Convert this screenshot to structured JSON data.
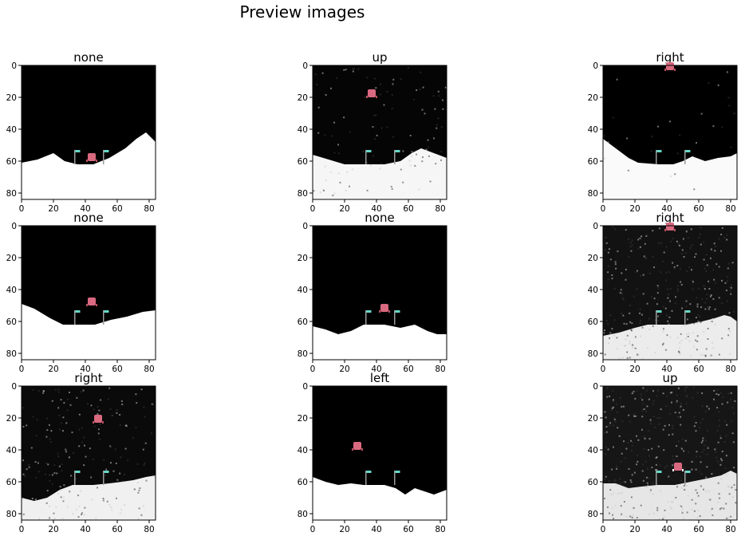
{
  "figure": {
    "title": "Preview images"
  },
  "chart_data": {
    "type": "image-grid",
    "grid": [
      3,
      3
    ],
    "xlim": [
      0,
      84
    ],
    "ylim": [
      84,
      0
    ],
    "x_ticks": [
      0,
      20,
      40,
      60,
      80
    ],
    "y_ticks": [
      0,
      20,
      40,
      60,
      80
    ],
    "panels": [
      {
        "title": "none",
        "sky": "#000000",
        "ground": "#ffffff",
        "noise": 0.0,
        "terrain": [
          [
            0,
            61
          ],
          [
            10,
            59
          ],
          [
            20,
            55
          ],
          [
            27,
            60
          ],
          [
            35,
            62
          ],
          [
            45,
            62
          ],
          [
            55,
            58
          ],
          [
            65,
            52
          ],
          [
            72,
            46
          ],
          [
            78,
            42
          ],
          [
            84,
            48
          ]
        ],
        "lander": {
          "x": 44,
          "y": 57
        },
        "flags": true
      },
      {
        "title": "up",
        "sky": "#050505",
        "ground": "#f6f6f6",
        "noise": 0.12,
        "terrain": [
          [
            0,
            56
          ],
          [
            10,
            59
          ],
          [
            20,
            62
          ],
          [
            35,
            62
          ],
          [
            45,
            62
          ],
          [
            55,
            60
          ],
          [
            62,
            55
          ],
          [
            68,
            52
          ],
          [
            76,
            55
          ],
          [
            84,
            58
          ]
        ],
        "lander": {
          "x": 37,
          "y": 17
        },
        "flags": true
      },
      {
        "title": "right",
        "sky": "#000000",
        "ground": "#fafafa",
        "noise": 0.03,
        "terrain": [
          [
            0,
            46
          ],
          [
            8,
            52
          ],
          [
            16,
            58
          ],
          [
            22,
            61
          ],
          [
            35,
            62
          ],
          [
            44,
            62
          ],
          [
            50,
            60
          ],
          [
            56,
            57
          ],
          [
            64,
            60
          ],
          [
            72,
            58
          ],
          [
            80,
            57
          ],
          [
            84,
            55
          ]
        ],
        "lander": {
          "x": 42,
          "y": 0
        },
        "flags": true
      },
      {
        "title": "none",
        "sky": "#000000",
        "ground": "#ffffff",
        "noise": 0.0,
        "terrain": [
          [
            0,
            49
          ],
          [
            8,
            52
          ],
          [
            18,
            58
          ],
          [
            26,
            62
          ],
          [
            35,
            62
          ],
          [
            46,
            62
          ],
          [
            56,
            59
          ],
          [
            66,
            57
          ],
          [
            76,
            54
          ],
          [
            84,
            53
          ]
        ],
        "lander": {
          "x": 44,
          "y": 47
        },
        "flags": true
      },
      {
        "title": "none",
        "sky": "#000000",
        "ground": "#ffffff",
        "noise": 0.0,
        "terrain": [
          [
            0,
            63
          ],
          [
            8,
            65
          ],
          [
            16,
            68
          ],
          [
            24,
            66
          ],
          [
            32,
            62
          ],
          [
            45,
            62
          ],
          [
            55,
            64
          ],
          [
            64,
            62
          ],
          [
            72,
            66
          ],
          [
            78,
            68
          ],
          [
            84,
            68
          ]
        ],
        "lander": {
          "x": 45,
          "y": 51
        },
        "flags": true
      },
      {
        "title": "right",
        "sky": "#121212",
        "ground": "#ececec",
        "noise": 0.35,
        "terrain": [
          [
            0,
            69
          ],
          [
            10,
            67
          ],
          [
            20,
            64
          ],
          [
            28,
            62
          ],
          [
            40,
            62
          ],
          [
            52,
            62
          ],
          [
            62,
            60
          ],
          [
            70,
            58
          ],
          [
            76,
            56
          ],
          [
            80,
            57
          ],
          [
            84,
            60
          ]
        ],
        "lander": {
          "x": 42,
          "y": 0
        },
        "flags": true
      },
      {
        "title": "right",
        "sky": "#0a0a0a",
        "ground": "#f0f0f0",
        "noise": 0.22,
        "terrain": [
          [
            0,
            70
          ],
          [
            8,
            72
          ],
          [
            16,
            70
          ],
          [
            24,
            65
          ],
          [
            32,
            62
          ],
          [
            45,
            62
          ],
          [
            55,
            61
          ],
          [
            63,
            60
          ],
          [
            70,
            59
          ],
          [
            78,
            57
          ],
          [
            84,
            56
          ]
        ],
        "lander": {
          "x": 48,
          "y": 20
        },
        "flags": true
      },
      {
        "title": "left",
        "sky": "#000000",
        "ground": "#ffffff",
        "noise": 0.0,
        "terrain": [
          [
            0,
            57
          ],
          [
            8,
            60
          ],
          [
            16,
            62
          ],
          [
            24,
            61
          ],
          [
            32,
            62
          ],
          [
            45,
            62
          ],
          [
            52,
            64
          ],
          [
            58,
            68
          ],
          [
            64,
            64
          ],
          [
            70,
            66
          ],
          [
            76,
            68
          ],
          [
            84,
            65
          ]
        ],
        "lander": {
          "x": 28,
          "y": 37
        },
        "flags": true
      },
      {
        "title": "up",
        "sky": "#161616",
        "ground": "#e6e6e6",
        "noise": 0.4,
        "terrain": [
          [
            0,
            61
          ],
          [
            8,
            61
          ],
          [
            16,
            64
          ],
          [
            24,
            63
          ],
          [
            34,
            62
          ],
          [
            45,
            62
          ],
          [
            55,
            60
          ],
          [
            65,
            58
          ],
          [
            74,
            56
          ],
          [
            80,
            53
          ],
          [
            84,
            55
          ]
        ],
        "lander": {
          "x": 47,
          "y": 50
        },
        "flags": true,
        "white_legs": true
      }
    ]
  }
}
